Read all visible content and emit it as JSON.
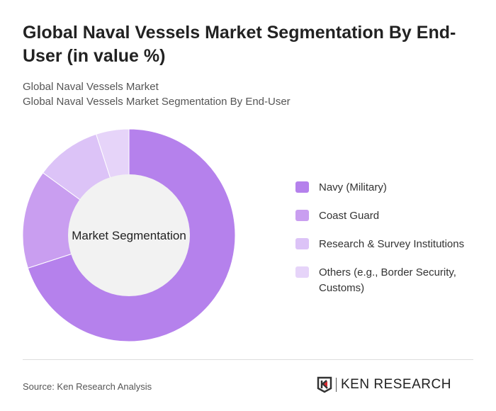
{
  "title": "Global Naval Vessels Market Segmentation By End-User (in value %)",
  "subtitle1": "Global Naval Vessels Market",
  "subtitle2": "Global Naval Vessels Market Segmentation By End-User",
  "source": "Source: Ken Research Analysis",
  "logo_text": "KEN RESEARCH",
  "chart_data": {
    "type": "pie",
    "variant": "donut",
    "center_label": "Market Segmentation",
    "categories": [
      "Navy (Military)",
      "Coast Guard",
      "Research & Survey Institutions",
      "Others (e.g., Border Security, Customs)"
    ],
    "values": [
      70,
      15,
      10,
      5
    ],
    "colors": [
      "#b581ec",
      "#c99ef0",
      "#dcc3f7",
      "#e6d4f9"
    ],
    "legend_position": "right"
  }
}
